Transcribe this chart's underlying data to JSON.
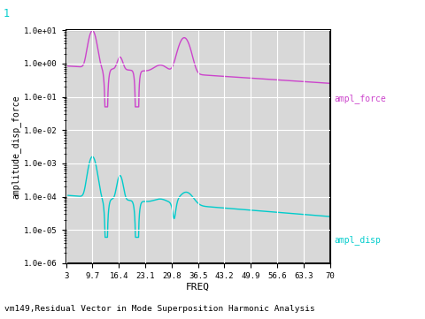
{
  "title": "vm149,Residual Vector in Mode Superposition Harmonic Analysis",
  "xlabel": "FREQ",
  "ylabel": "amplitude_disp_force",
  "corner_label": "1",
  "legend_force": "ampl_force",
  "legend_disp": "ampl_disp",
  "xlim": [
    3,
    70
  ],
  "ylim_log": [
    -6,
    1
  ],
  "xticks": [
    3,
    9.7,
    16.4,
    23.1,
    29.8,
    36.5,
    43.2,
    49.9,
    56.6,
    63.3,
    70
  ],
  "yticks_labels": [
    "1.0e-06",
    "1.0e-05",
    "1.0e-04",
    "1.0e-03",
    "1.0e-02",
    "1.0e-01",
    "1.0e+00",
    "1.0e+01"
  ],
  "color_force": "#cc44cc",
  "color_disp": "#00cccc",
  "bg_color": "#d8d8d8",
  "border_color": "#000000",
  "text_color": "#000000",
  "grid_color": "#ffffff",
  "corner_color": "#00cccc",
  "fig_bg": "#ffffff"
}
